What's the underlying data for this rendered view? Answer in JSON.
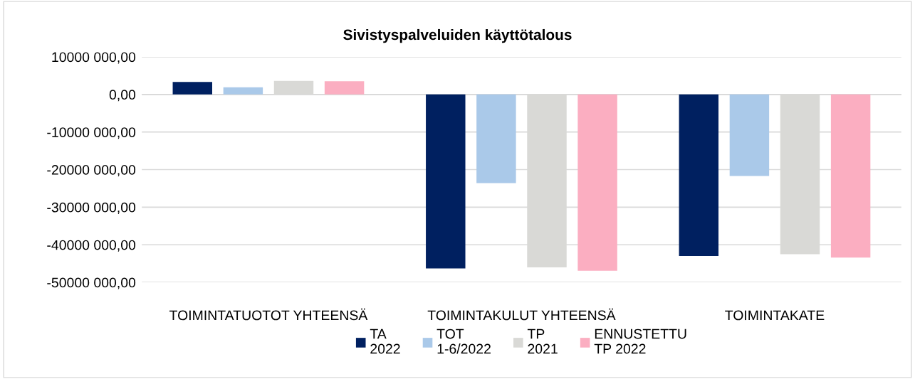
{
  "chart_data": {
    "type": "bar",
    "title": "Sivistyspalveluiden käyttötalous",
    "categories": [
      "TOIMINTATUOTOT YHTEENSÄ",
      "TOIMINTAKULUT YHTEENSÄ",
      "TOIMINTAKATE"
    ],
    "series": [
      {
        "name": "TA\n2022",
        "color": "#002060",
        "values": [
          3300000,
          -46300000,
          -43000000
        ]
      },
      {
        "name": "TOT\n1-6/2022",
        "color": "#aac9e9",
        "values": [
          1900000,
          -23600000,
          -21700000
        ]
      },
      {
        "name": "TP\n2021",
        "color": "#d9d9d6",
        "values": [
          3600000,
          -46000000,
          -42500000
        ]
      },
      {
        "name": "ENNUSTETTU\nTP 2022",
        "color": "#fbaec1",
        "values": [
          3500000,
          -46900000,
          -43400000
        ]
      }
    ],
    "ylim": [
      -50000000,
      10000000
    ],
    "yticks": [
      {
        "value": -50000000,
        "label": "-50000 000,00"
      },
      {
        "value": -40000000,
        "label": "-40000 000,00"
      },
      {
        "value": -30000000,
        "label": "-30000 000,00"
      },
      {
        "value": -20000000,
        "label": "-20000 000,00"
      },
      {
        "value": -10000000,
        "label": "-10000 000,00"
      },
      {
        "value": 0,
        "label": "0,00"
      },
      {
        "value": 10000000,
        "label": "10000 000,00"
      }
    ],
    "grid": "y",
    "legend": "bottom"
  }
}
